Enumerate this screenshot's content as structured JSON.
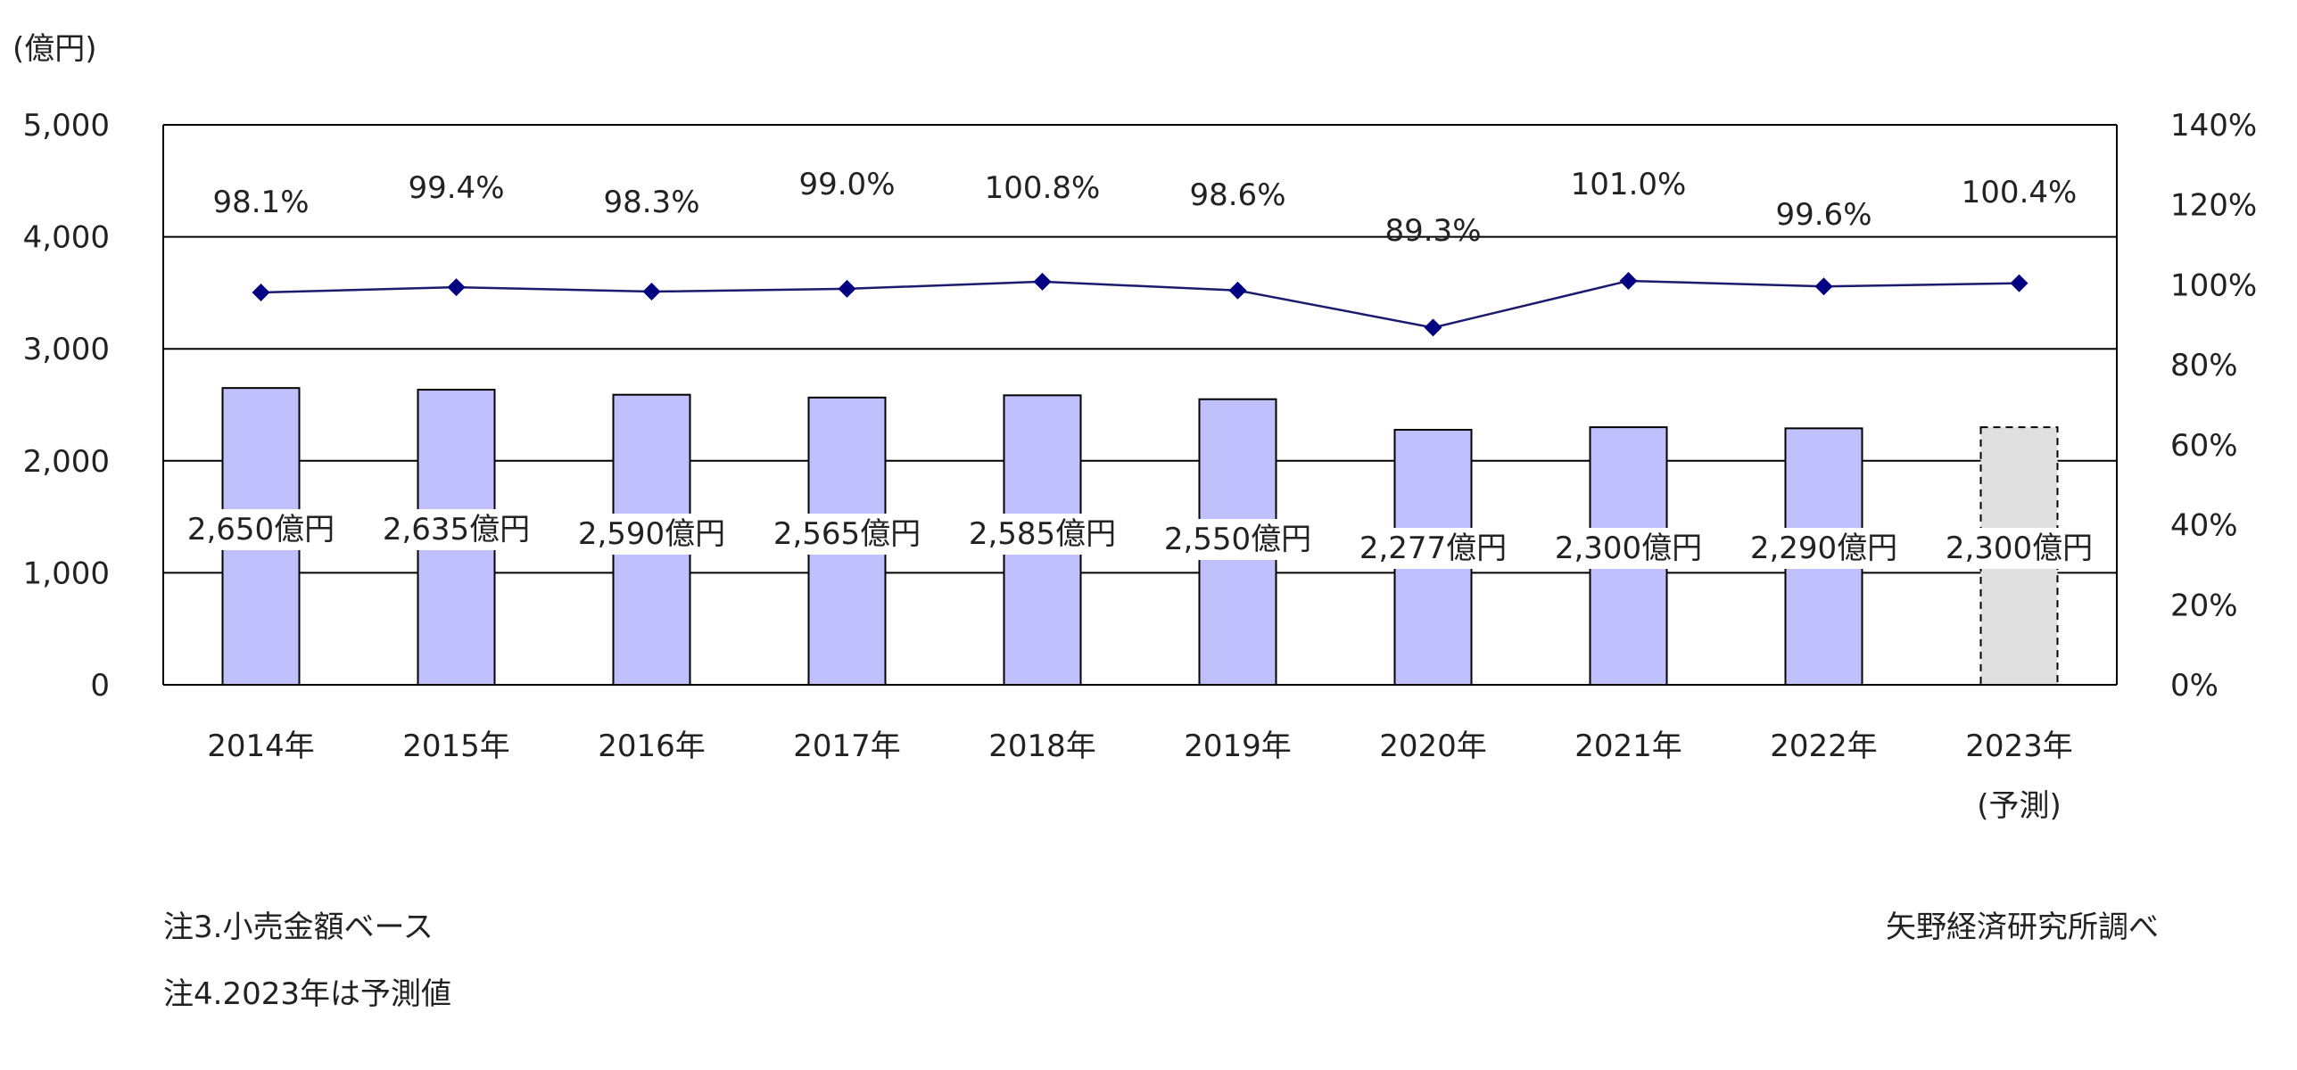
{
  "chart_data": {
    "type": "bar",
    "unit_label": "(億円)",
    "categories": [
      "2014年",
      "2015年",
      "2016年",
      "2017年",
      "2018年",
      "2019年",
      "2020年",
      "2021年",
      "2022年",
      "2023年"
    ],
    "forecast_sublabel": "(予測)",
    "series": [
      {
        "kind": "bar",
        "values": [
          2650,
          2635,
          2590,
          2565,
          2585,
          2550,
          2277,
          2300,
          2290,
          2300
        ],
        "labels": [
          "2,650億円",
          "2,635億円",
          "2,590億円",
          "2,565億円",
          "2,585億円",
          "2,550億円",
          "2,277億円",
          "2,300億円",
          "2,290億円",
          "2,300億円"
        ],
        "forecast_index": 9
      },
      {
        "kind": "line",
        "axis": "right",
        "values": [
          98.1,
          99.4,
          98.3,
          99.0,
          100.8,
          98.6,
          89.3,
          101.0,
          99.6,
          100.4
        ],
        "labels": [
          "98.1%",
          "99.4%",
          "98.3%",
          "99.0%",
          "100.8%",
          "98.6%",
          "89.3%",
          "101.0%",
          "99.6%",
          "100.4%"
        ]
      }
    ],
    "y_left": {
      "min": 0,
      "max": 5000,
      "ticks": [
        "0",
        "1,000",
        "2,000",
        "3,000",
        "4,000",
        "5,000"
      ]
    },
    "y_right": {
      "min": 0,
      "max": 140,
      "ticks": [
        "0%",
        "20%",
        "40%",
        "60%",
        "80%",
        "100%",
        "120%",
        "140%"
      ]
    },
    "grid": true,
    "colors": {
      "bar_fill": "#c0c0ff",
      "bar_stroke": "#000000",
      "forecast_fill": "#e0e0e0",
      "line": "#1a1a6e",
      "marker": "#000080"
    }
  },
  "notes": {
    "note1": "注3.小売金額ベース",
    "note2": "注4.2023年は予測値",
    "source": "矢野経済研究所調べ"
  }
}
